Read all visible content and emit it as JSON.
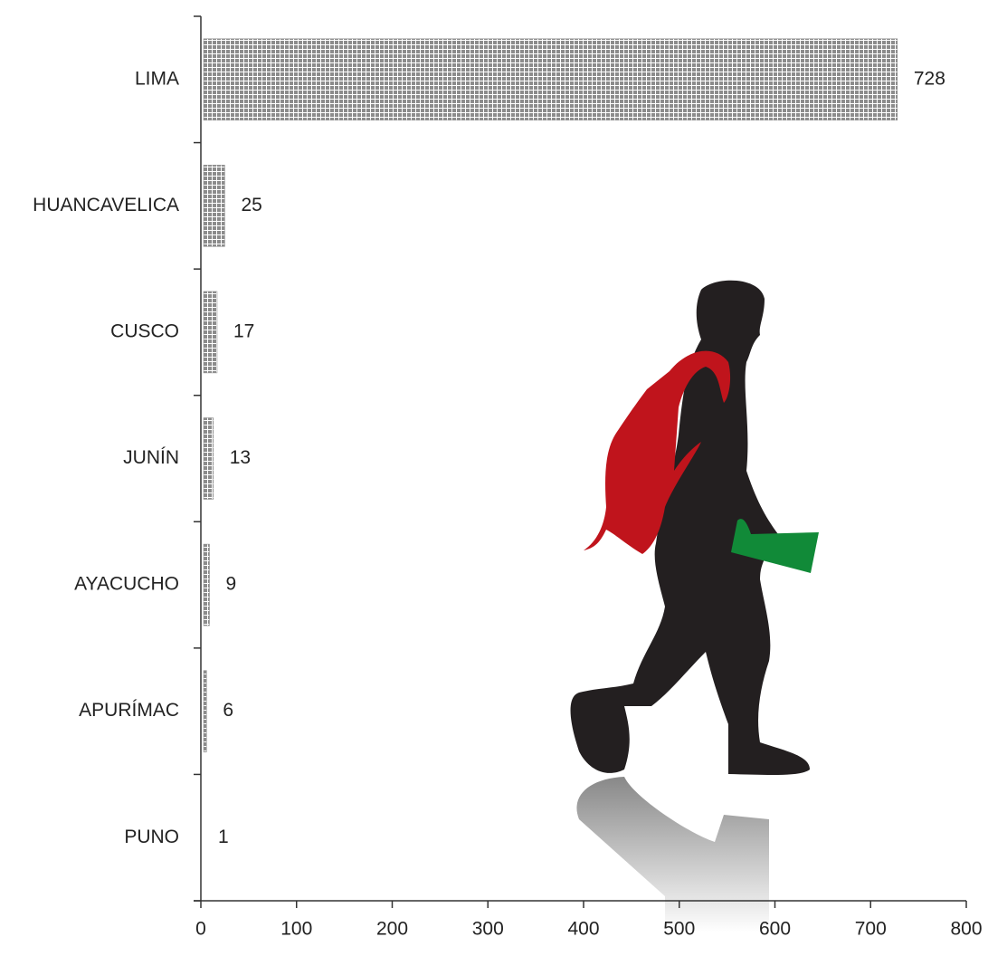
{
  "chart_data": {
    "type": "bar",
    "orientation": "horizontal",
    "categories": [
      "LIMA",
      "HUANCAVELICA",
      "CUSCO",
      "JUNÍN",
      "AYACUCHO",
      "APURÍMAC",
      "PUNO"
    ],
    "values": [
      728,
      25,
      17,
      13,
      9,
      6,
      1
    ],
    "color": "#8c8c8c",
    "xlim": [
      0,
      800
    ],
    "xticks": [
      0,
      100,
      200,
      300,
      400,
      500,
      600,
      700,
      800
    ]
  }
}
